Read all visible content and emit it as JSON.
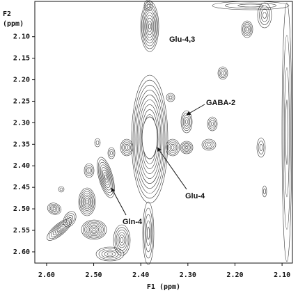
{
  "chart_data": {
    "type": "contour",
    "xlabel": "F1 (ppm)",
    "ylabel": [
      "F2",
      "(ppm)"
    ],
    "xlim": [
      2.625,
      2.078
    ],
    "ylim": [
      2.018,
      2.626
    ],
    "xticks": [
      {
        "value": 2.6,
        "label": "2.60"
      },
      {
        "value": 2.5,
        "label": "2.50"
      },
      {
        "value": 2.4,
        "label": "2.40"
      },
      {
        "value": 2.3,
        "label": "2.30"
      },
      {
        "value": 2.2,
        "label": "2.20"
      },
      {
        "value": 2.1,
        "label": "2.10"
      }
    ],
    "yticks": [
      {
        "value": 2.1,
        "label": "2.10"
      },
      2.15,
      {
        "value": 2.2,
        "label": "2.20"
      },
      2.25,
      {
        "value": 2.3,
        "label": "2.30"
      },
      2.35,
      {
        "value": 2.4,
        "label": "2.40"
      },
      2.45,
      {
        "value": 2.5,
        "label": "2.50"
      },
      2.55,
      {
        "value": 2.6,
        "label": "2.60"
      }
    ],
    "annotations": [
      "Glu-4,3",
      "GABA-2",
      "Glu-4",
      "Gln-4"
    ],
    "color": "#333333"
  }
}
